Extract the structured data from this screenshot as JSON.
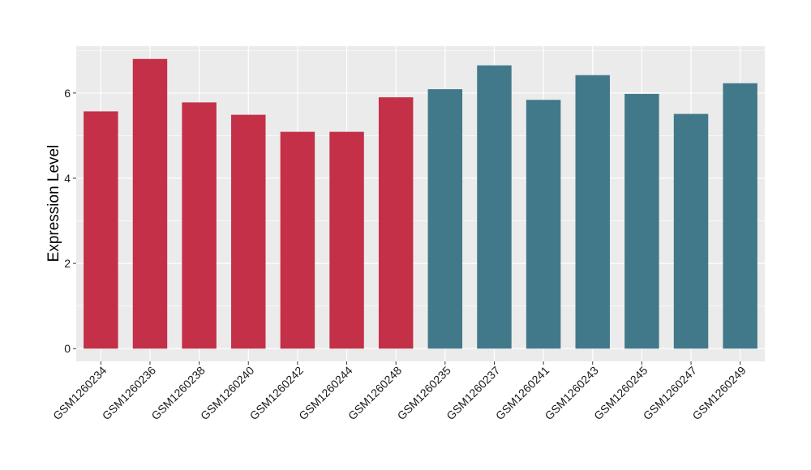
{
  "chart_data": {
    "type": "bar",
    "title": "",
    "xlabel": "",
    "ylabel": "Expression Level",
    "ylim": [
      -0.3,
      7.1
    ],
    "y_ticks": [
      0,
      2,
      4,
      6
    ],
    "grid": true,
    "legend": "none",
    "categories": [
      "GSM1260234",
      "GSM1260236",
      "GSM1260238",
      "GSM1260240",
      "GSM1260242",
      "GSM1260244",
      "GSM1260248",
      "GSM1260235",
      "GSM1260237",
      "GSM1260241",
      "GSM1260243",
      "GSM1260245",
      "GSM1260247",
      "GSM1260249"
    ],
    "values": [
      5.57,
      6.8,
      5.78,
      5.49,
      5.09,
      5.09,
      5.9,
      6.09,
      6.65,
      5.84,
      6.42,
      5.98,
      5.51,
      6.23
    ],
    "group_index": [
      0,
      0,
      0,
      0,
      0,
      0,
      0,
      1,
      1,
      1,
      1,
      1,
      1,
      1
    ],
    "group_colors": [
      "#c33048",
      "#41798a"
    ],
    "panel_background": "#ebebeb",
    "grid_color": "#ffffff"
  }
}
